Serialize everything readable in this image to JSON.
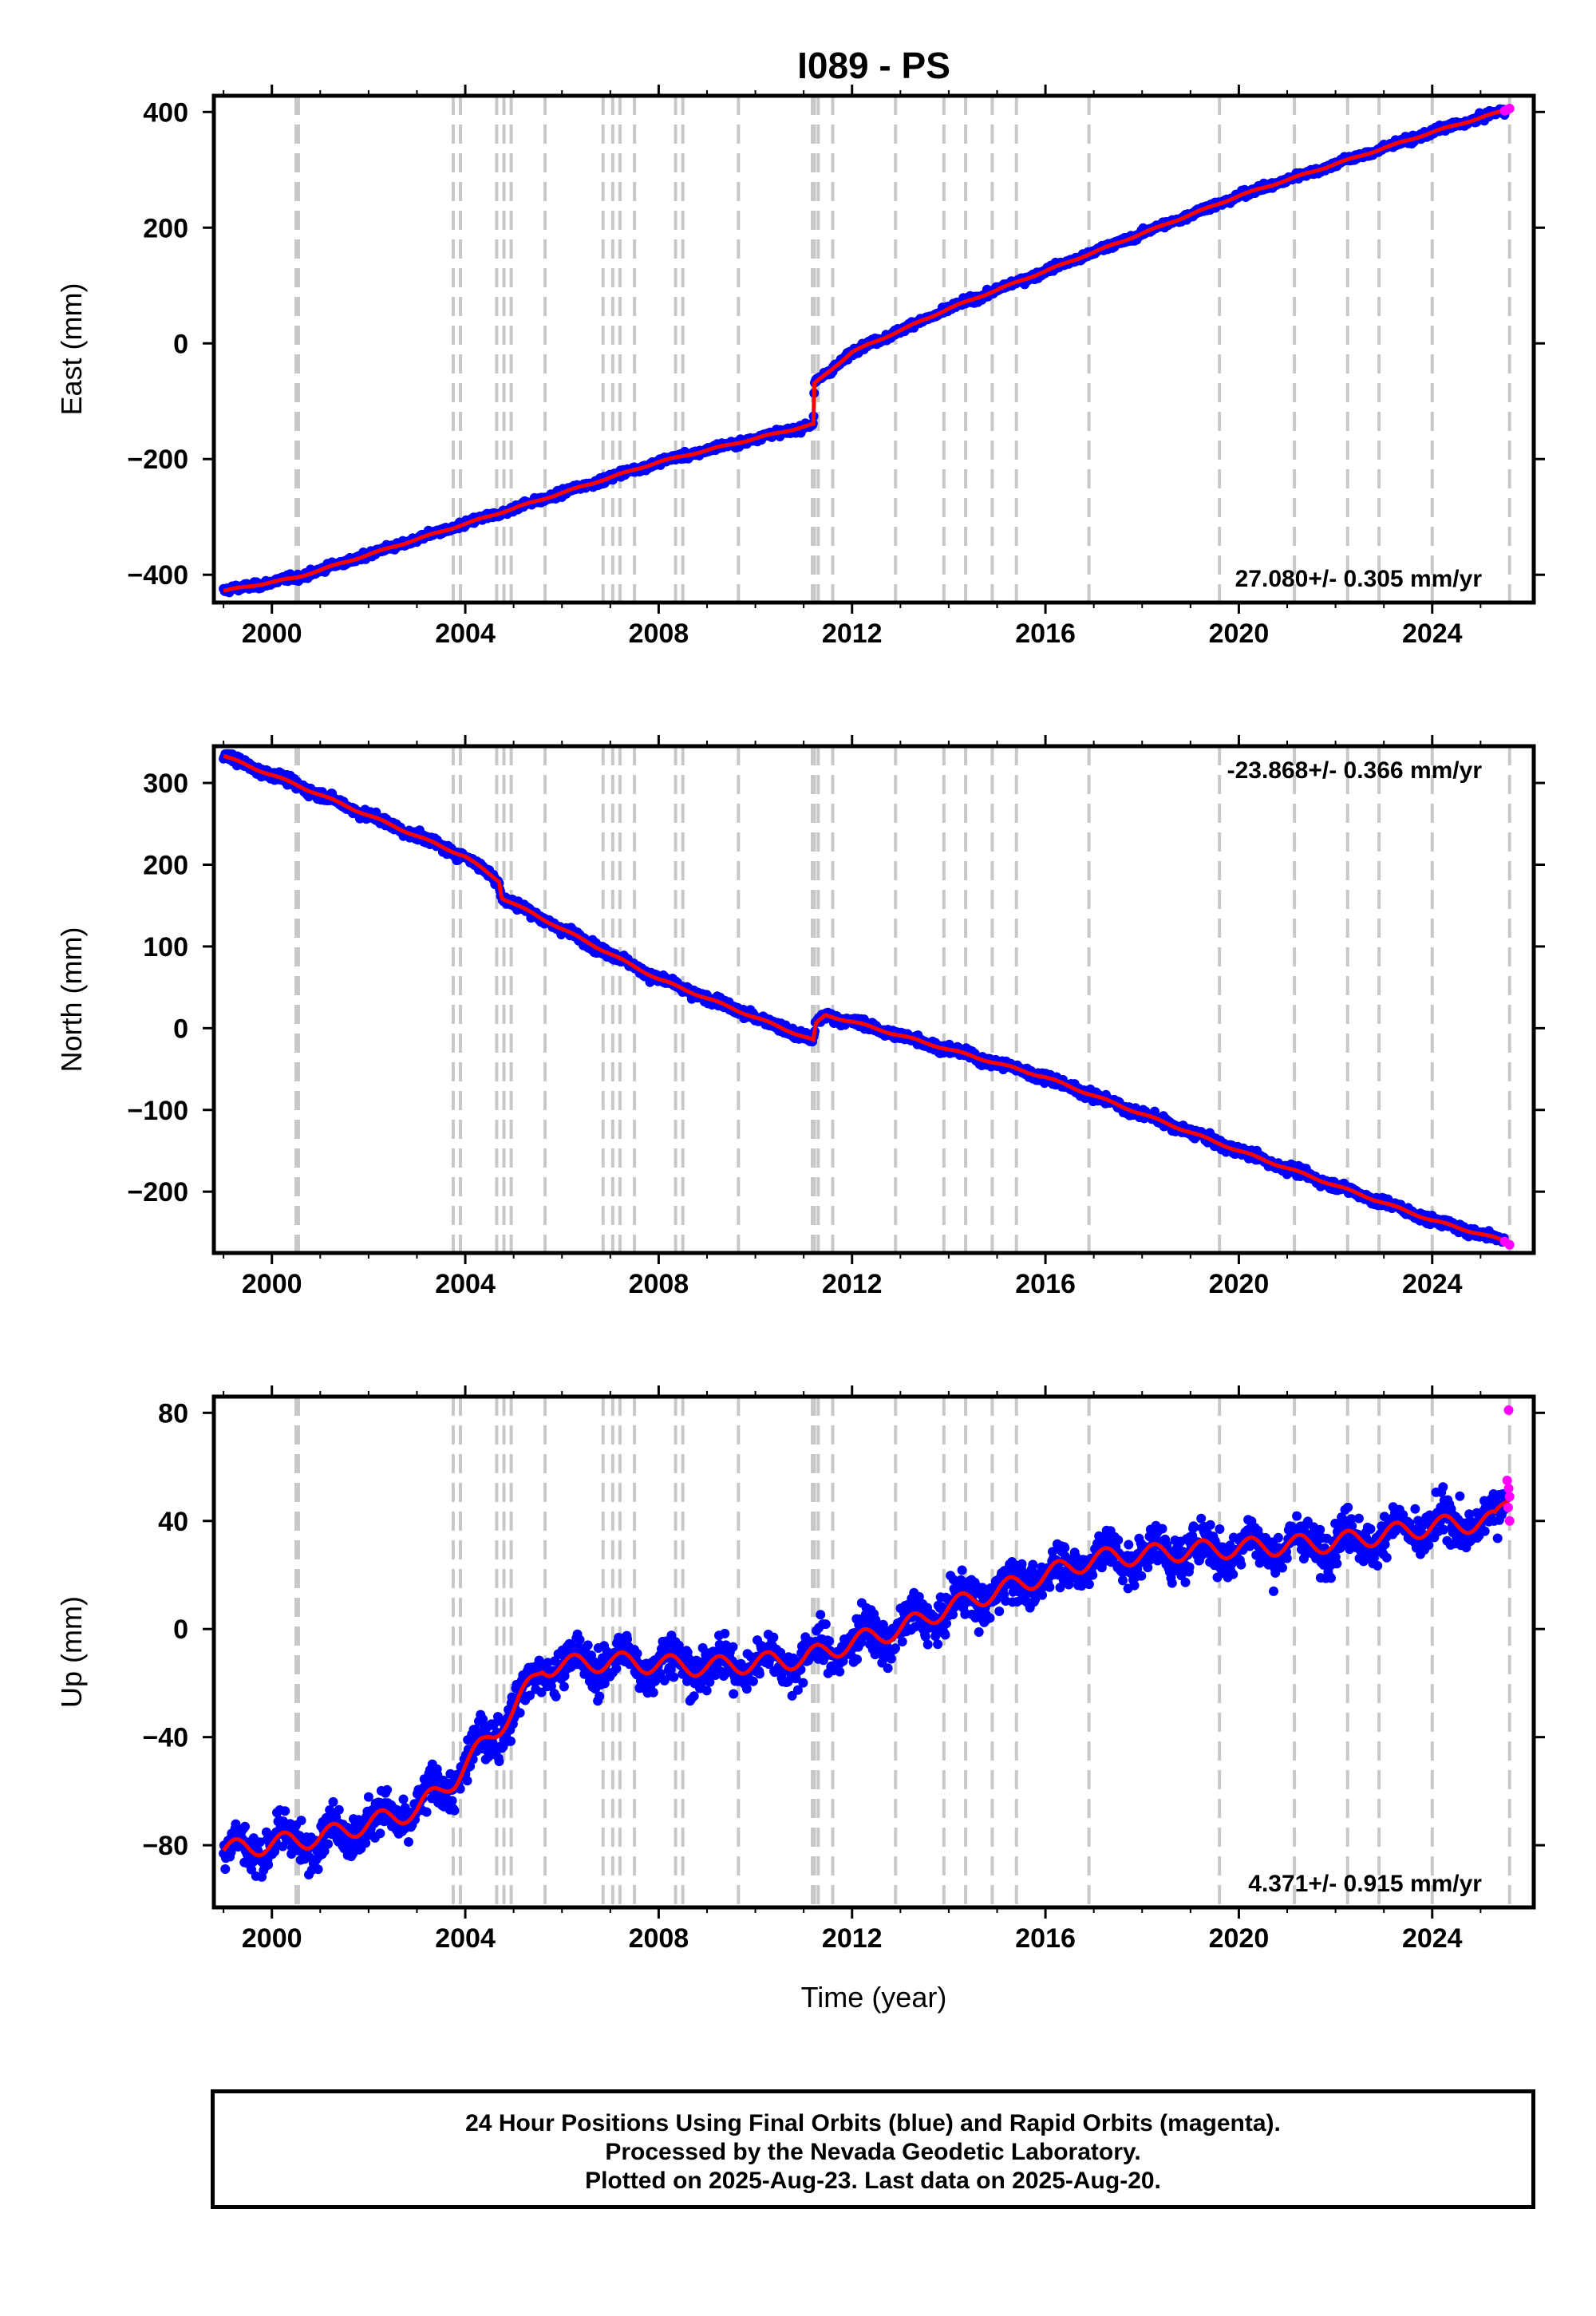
{
  "chart_data": {
    "type": "scatter",
    "title": "I089 - PS",
    "xlabel": "Time (year)",
    "xlim": [
      1998.8,
      2026.1
    ],
    "x_ticks": [
      2000,
      2004,
      2008,
      2012,
      2016,
      2020,
      2024
    ],
    "x_tick_labels": [
      "2000",
      "2004",
      "2008",
      "2012",
      "2016",
      "2020",
      "2024"
    ],
    "event_lines": [
      2000.5,
      2000.55,
      2003.75,
      2003.9,
      2004.65,
      2004.8,
      2004.95,
      2005.65,
      2006.85,
      2007.05,
      2007.2,
      2007.5,
      2008.35,
      2008.5,
      2009.65,
      2011.18,
      2011.22,
      2011.3,
      2011.6,
      2012.9,
      2013.9,
      2014.35,
      2014.9,
      2015.4,
      2016.9,
      2019.6,
      2021.15,
      2022.25,
      2022.9,
      2024.0,
      2025.6
    ],
    "series_colors": {
      "final": "#0000ff",
      "rapid": "#ff00ff",
      "model": "#ff0000",
      "event": "#c8c8c8"
    },
    "panels": [
      {
        "id": "east",
        "ylabel": "East (mm)",
        "ylim": [
          -448,
          428
        ],
        "y_ticks": [
          -400,
          -200,
          0,
          200,
          400
        ],
        "y_tick_labels": [
          "−400",
          "−200",
          "0",
          "200",
          "400"
        ],
        "rate_label": "27.080+/- 0.305 mm/yr",
        "rate_position": "bottom-right",
        "trend_points": [
          [
            1999.0,
            -428
          ],
          [
            2000.5,
            -405
          ],
          [
            2004.0,
            -312
          ],
          [
            2008.0,
            -205
          ],
          [
            2011.2,
            -140
          ],
          [
            2011.22,
            -70
          ],
          [
            2012.0,
            -15
          ],
          [
            2014.0,
            60
          ],
          [
            2016.0,
            125
          ],
          [
            2020.0,
            255
          ],
          [
            2024.0,
            365
          ],
          [
            2025.6,
            405
          ]
        ],
        "rapid_points": [
          [
            2025.5,
            402
          ],
          [
            2025.55,
            404
          ],
          [
            2025.6,
            406
          ]
        ],
        "scatter_noise": 4.0,
        "seasonal_amp": 1.5
      },
      {
        "id": "north",
        "ylabel": "North (mm)",
        "ylim": [
          -275,
          345
        ],
        "y_ticks": [
          -200,
          -100,
          0,
          100,
          200,
          300
        ],
        "y_tick_labels": [
          "−200",
          "−100",
          "0",
          "100",
          "200",
          "300"
        ],
        "rate_label": "-23.868+/- 0.366 mm/yr",
        "rate_position": "top-right",
        "trend_points": [
          [
            1999.0,
            333
          ],
          [
            2000.5,
            298
          ],
          [
            2004.0,
            210
          ],
          [
            2004.7,
            180
          ],
          [
            2004.75,
            160
          ],
          [
            2008.0,
            60
          ],
          [
            2011.2,
            -15
          ],
          [
            2011.25,
            5
          ],
          [
            2011.45,
            16
          ],
          [
            2012.0,
            8
          ],
          [
            2016.0,
            -60
          ],
          [
            2020.0,
            -150
          ],
          [
            2024.0,
            -235
          ],
          [
            2025.6,
            -262
          ]
        ],
        "rapid_points": [
          [
            2025.5,
            -261
          ],
          [
            2025.6,
            -265
          ]
        ],
        "scatter_noise": 4.0,
        "seasonal_amp": 1.5
      },
      {
        "id": "up",
        "ylabel": "Up (mm)",
        "ylim": [
          -103,
          86
        ],
        "y_ticks": [
          -80,
          -40,
          0,
          40,
          80
        ],
        "y_tick_labels": [
          "−80",
          "−40",
          "0",
          "40",
          "80"
        ],
        "rate_label": "4.371+/- 0.915 mm/yr",
        "rate_position": "bottom-right",
        "trend_points": [
          [
            1999.0,
            -82
          ],
          [
            2001.0,
            -77
          ],
          [
            2003.0,
            -67
          ],
          [
            2003.8,
            -55
          ],
          [
            2004.5,
            -40
          ],
          [
            2005.0,
            -30
          ],
          [
            2005.6,
            -14
          ],
          [
            2007.0,
            -12
          ],
          [
            2009.0,
            -14
          ],
          [
            2011.0,
            -11
          ],
          [
            2012.0,
            -5
          ],
          [
            2013.0,
            0
          ],
          [
            2014.0,
            8
          ],
          [
            2015.0,
            14
          ],
          [
            2016.0,
            20
          ],
          [
            2017.0,
            26
          ],
          [
            2019.0,
            29
          ],
          [
            2020.0,
            30
          ],
          [
            2022.0,
            32
          ],
          [
            2024.0,
            38
          ],
          [
            2025.3,
            40
          ],
          [
            2025.6,
            50
          ]
        ],
        "rapid_points": [
          [
            2025.58,
            81
          ],
          [
            2025.55,
            55
          ],
          [
            2025.58,
            52
          ],
          [
            2025.6,
            49
          ],
          [
            2025.57,
            45
          ],
          [
            2025.6,
            40
          ]
        ],
        "scatter_noise": 5.5,
        "seasonal_amp": 4.5
      }
    ]
  },
  "footer": {
    "line1": "24 Hour Positions Using Final Orbits (blue) and Rapid Orbits (magenta).",
    "line2": "Processed by the Nevada Geodetic Laboratory.",
    "line3": "Plotted on 2025-Aug-23. Last data on 2025-Aug-20."
  }
}
